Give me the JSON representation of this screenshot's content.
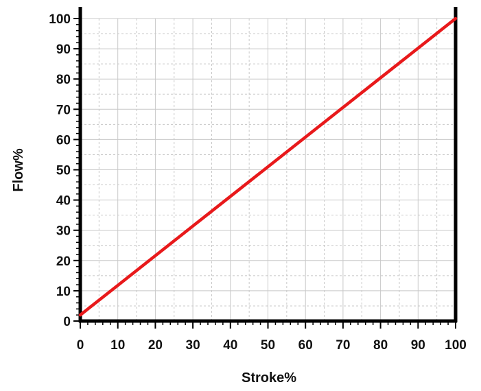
{
  "chart_data": {
    "type": "line",
    "title": "",
    "xlabel": "Stroke%",
    "ylabel": "Flow%",
    "xlim": [
      0,
      100
    ],
    "ylim": [
      0,
      100
    ],
    "grid": true,
    "x_ticks": [
      0,
      10,
      20,
      30,
      40,
      50,
      60,
      70,
      80,
      90,
      100
    ],
    "y_ticks": [
      0,
      10,
      20,
      30,
      40,
      50,
      60,
      70,
      80,
      90,
      100
    ],
    "x_tick_labels": [
      "0",
      "10",
      "20",
      "30",
      "40",
      "50",
      "60",
      "70",
      "80",
      "90",
      "100"
    ],
    "y_tick_labels": [
      "0",
      "10",
      "20",
      "30",
      "40",
      "50",
      "60",
      "70",
      "80",
      "90",
      "100"
    ],
    "series": [
      {
        "color": "#e8191b",
        "x": [
          0,
          10,
          20,
          30,
          40,
          50,
          60,
          70,
          80,
          90,
          100
        ],
        "y": [
          2,
          11.8,
          21.6,
          31.4,
          41.2,
          51,
          60.8,
          70.6,
          80.4,
          90.2,
          100
        ]
      }
    ],
    "colors": {
      "series": "#e8191b",
      "axis": "#000000",
      "grid": "#c8c8c8"
    }
  }
}
